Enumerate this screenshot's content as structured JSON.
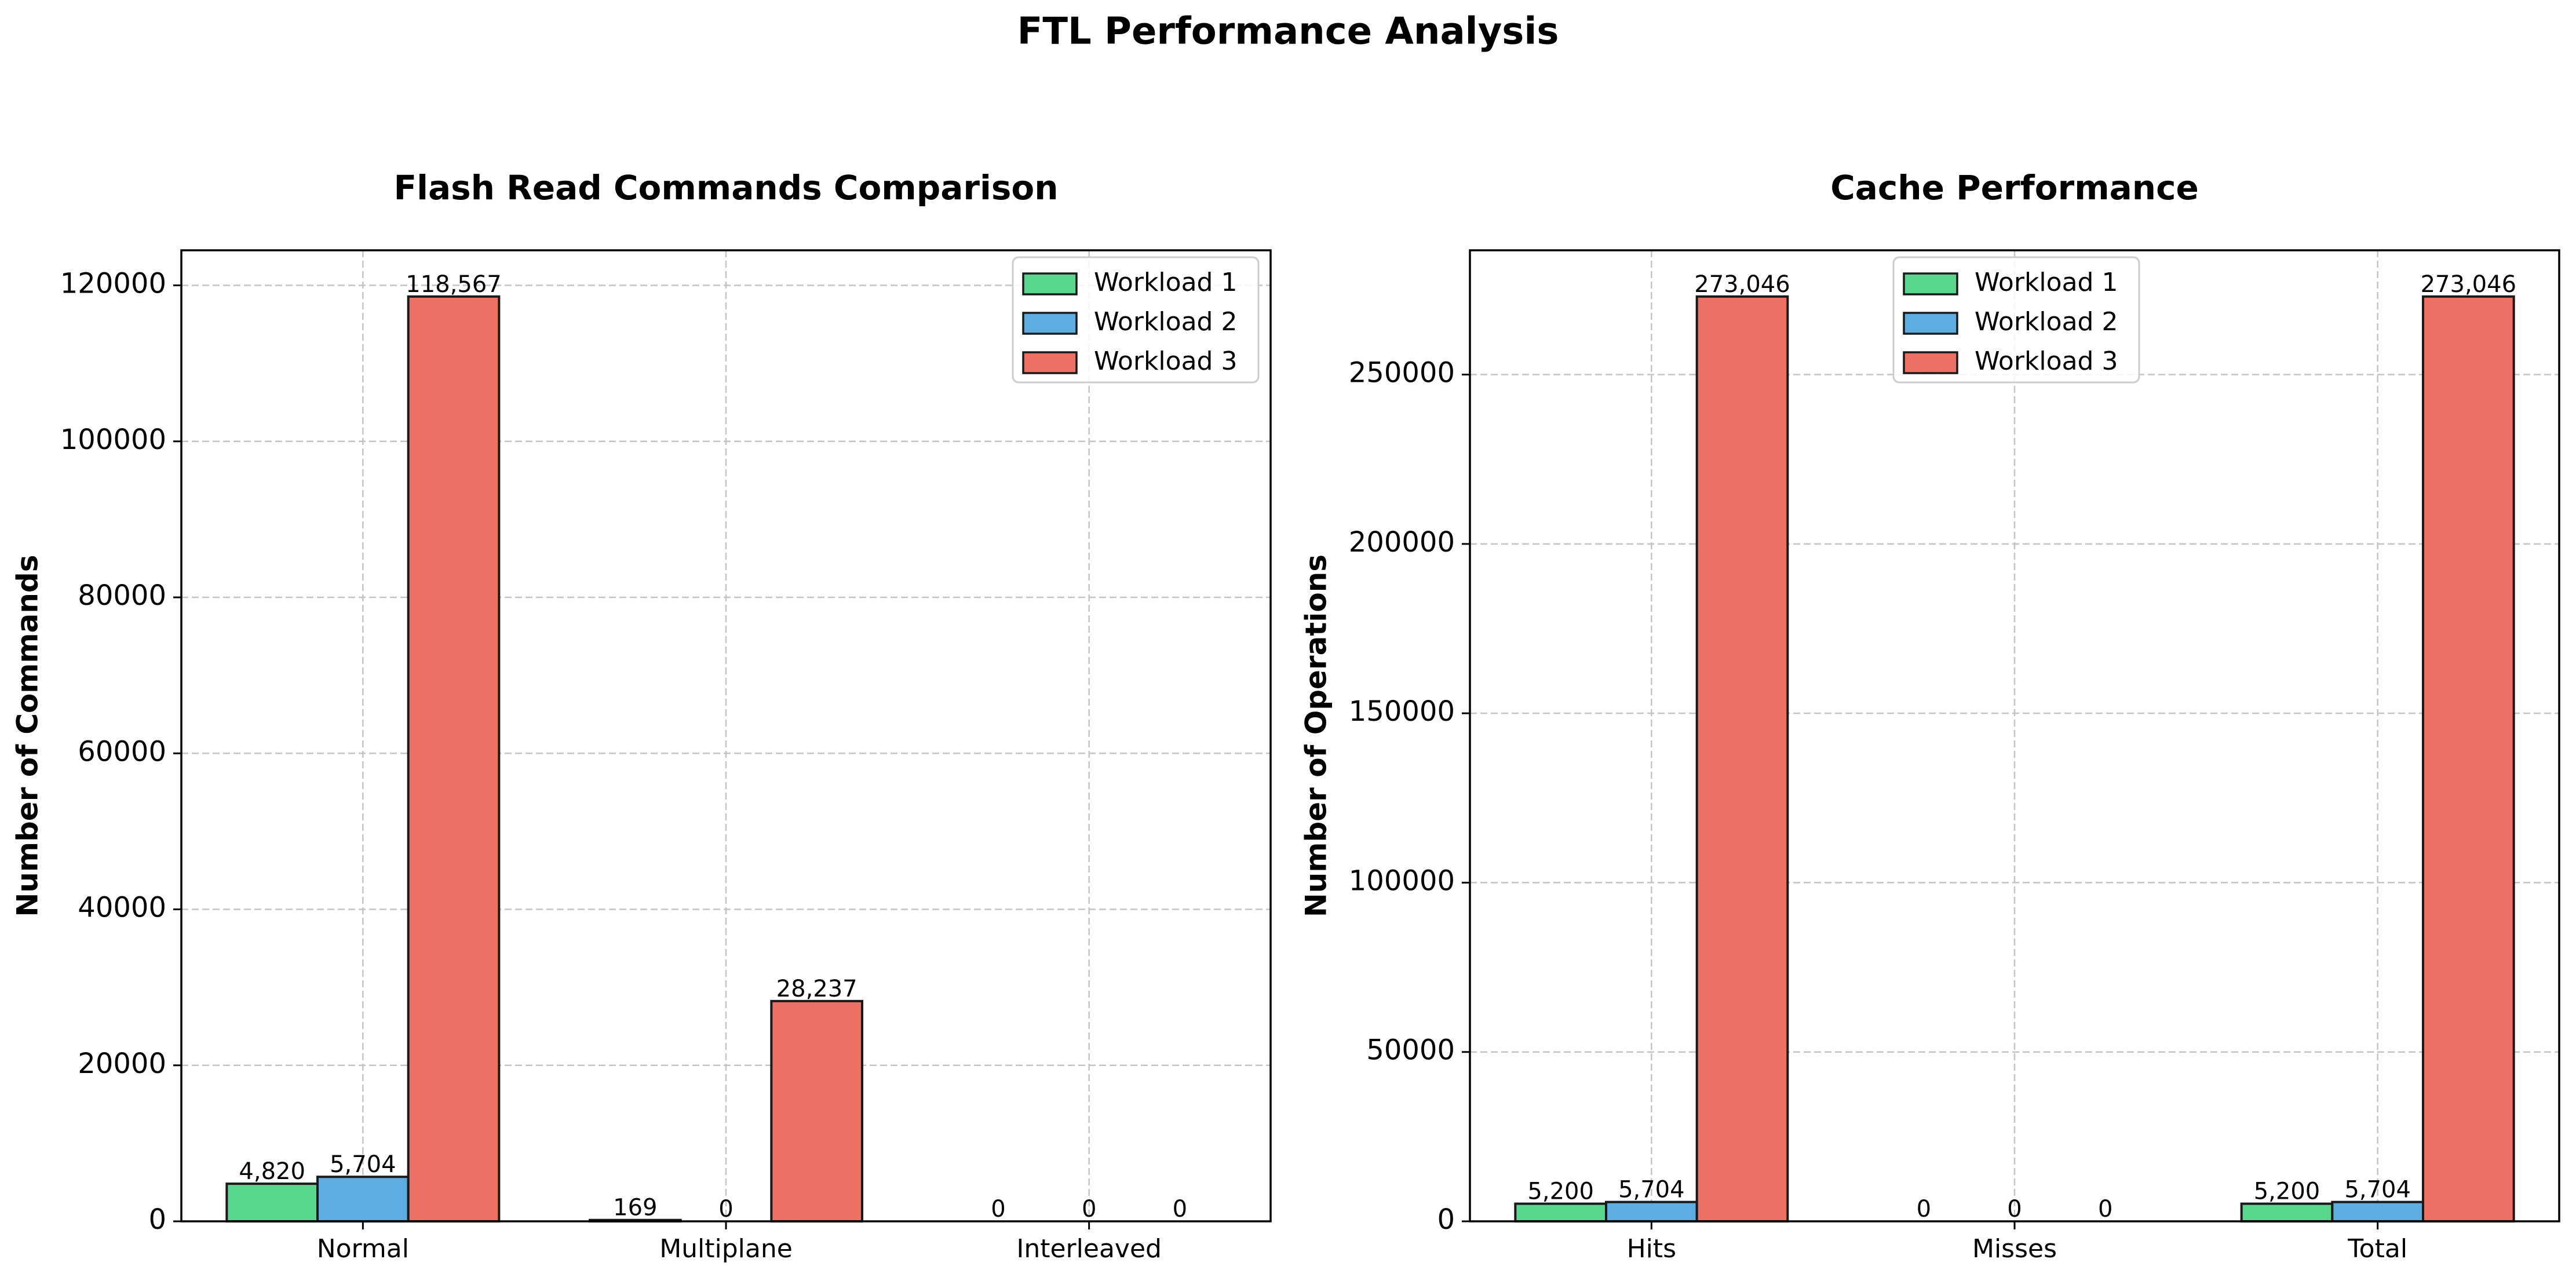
{
  "figure": {
    "suptitle": "FTL Performance Analysis",
    "legend_entries": [
      "Workload 1",
      "Workload 2",
      "Workload 3"
    ],
    "colors": {
      "workload_1": "#58d68d",
      "workload_2": "#5dade2",
      "workload_3": "#ec7063",
      "edge": "#1a1a1a",
      "grid": "#c4c4c4"
    }
  },
  "chart_data": [
    {
      "type": "bar",
      "title": "Flash Read Commands Comparison",
      "xlabel": "",
      "ylabel": "Number of Commands",
      "categories": [
        "Normal",
        "Multiplane",
        "Interleaved"
      ],
      "series": [
        {
          "name": "Workload 1",
          "values": [
            4820,
            169,
            0
          ],
          "labels": [
            "4,820",
            "169",
            "0"
          ]
        },
        {
          "name": "Workload 2",
          "values": [
            5704,
            0,
            0
          ],
          "labels": [
            "5,704",
            "0",
            "0"
          ]
        },
        {
          "name": "Workload 3",
          "values": [
            118567,
            28237,
            0
          ],
          "labels": [
            "118,567",
            "28,237",
            "0"
          ]
        }
      ],
      "ylim": [
        0,
        124496
      ],
      "yticks": [
        0,
        20000,
        40000,
        60000,
        80000,
        100000,
        120000
      ],
      "ytick_labels": [
        "0",
        "20000",
        "40000",
        "60000",
        "80000",
        "100000",
        "120000"
      ],
      "grid": true,
      "legend_position": "top-right"
    },
    {
      "type": "bar",
      "title": "Cache Performance",
      "xlabel": "",
      "ylabel": "Number of Operations",
      "categories": [
        "Hits",
        "Misses",
        "Total"
      ],
      "series": [
        {
          "name": "Workload 1",
          "values": [
            5200,
            0,
            5200
          ],
          "labels": [
            "5,200",
            "0",
            "5,200"
          ]
        },
        {
          "name": "Workload 2",
          "values": [
            5704,
            0,
            5704
          ],
          "labels": [
            "5,704",
            "0",
            "5,704"
          ]
        },
        {
          "name": "Workload 3",
          "values": [
            273046,
            0,
            273046
          ],
          "labels": [
            "273,046",
            "0",
            "273,046"
          ]
        }
      ],
      "ylim": [
        0,
        286698
      ],
      "yticks": [
        0,
        50000,
        100000,
        150000,
        200000,
        250000
      ],
      "ytick_labels": [
        "0",
        "50000",
        "100000",
        "150000",
        "200000",
        "250000"
      ],
      "grid": true,
      "legend_position": "top-center"
    }
  ]
}
